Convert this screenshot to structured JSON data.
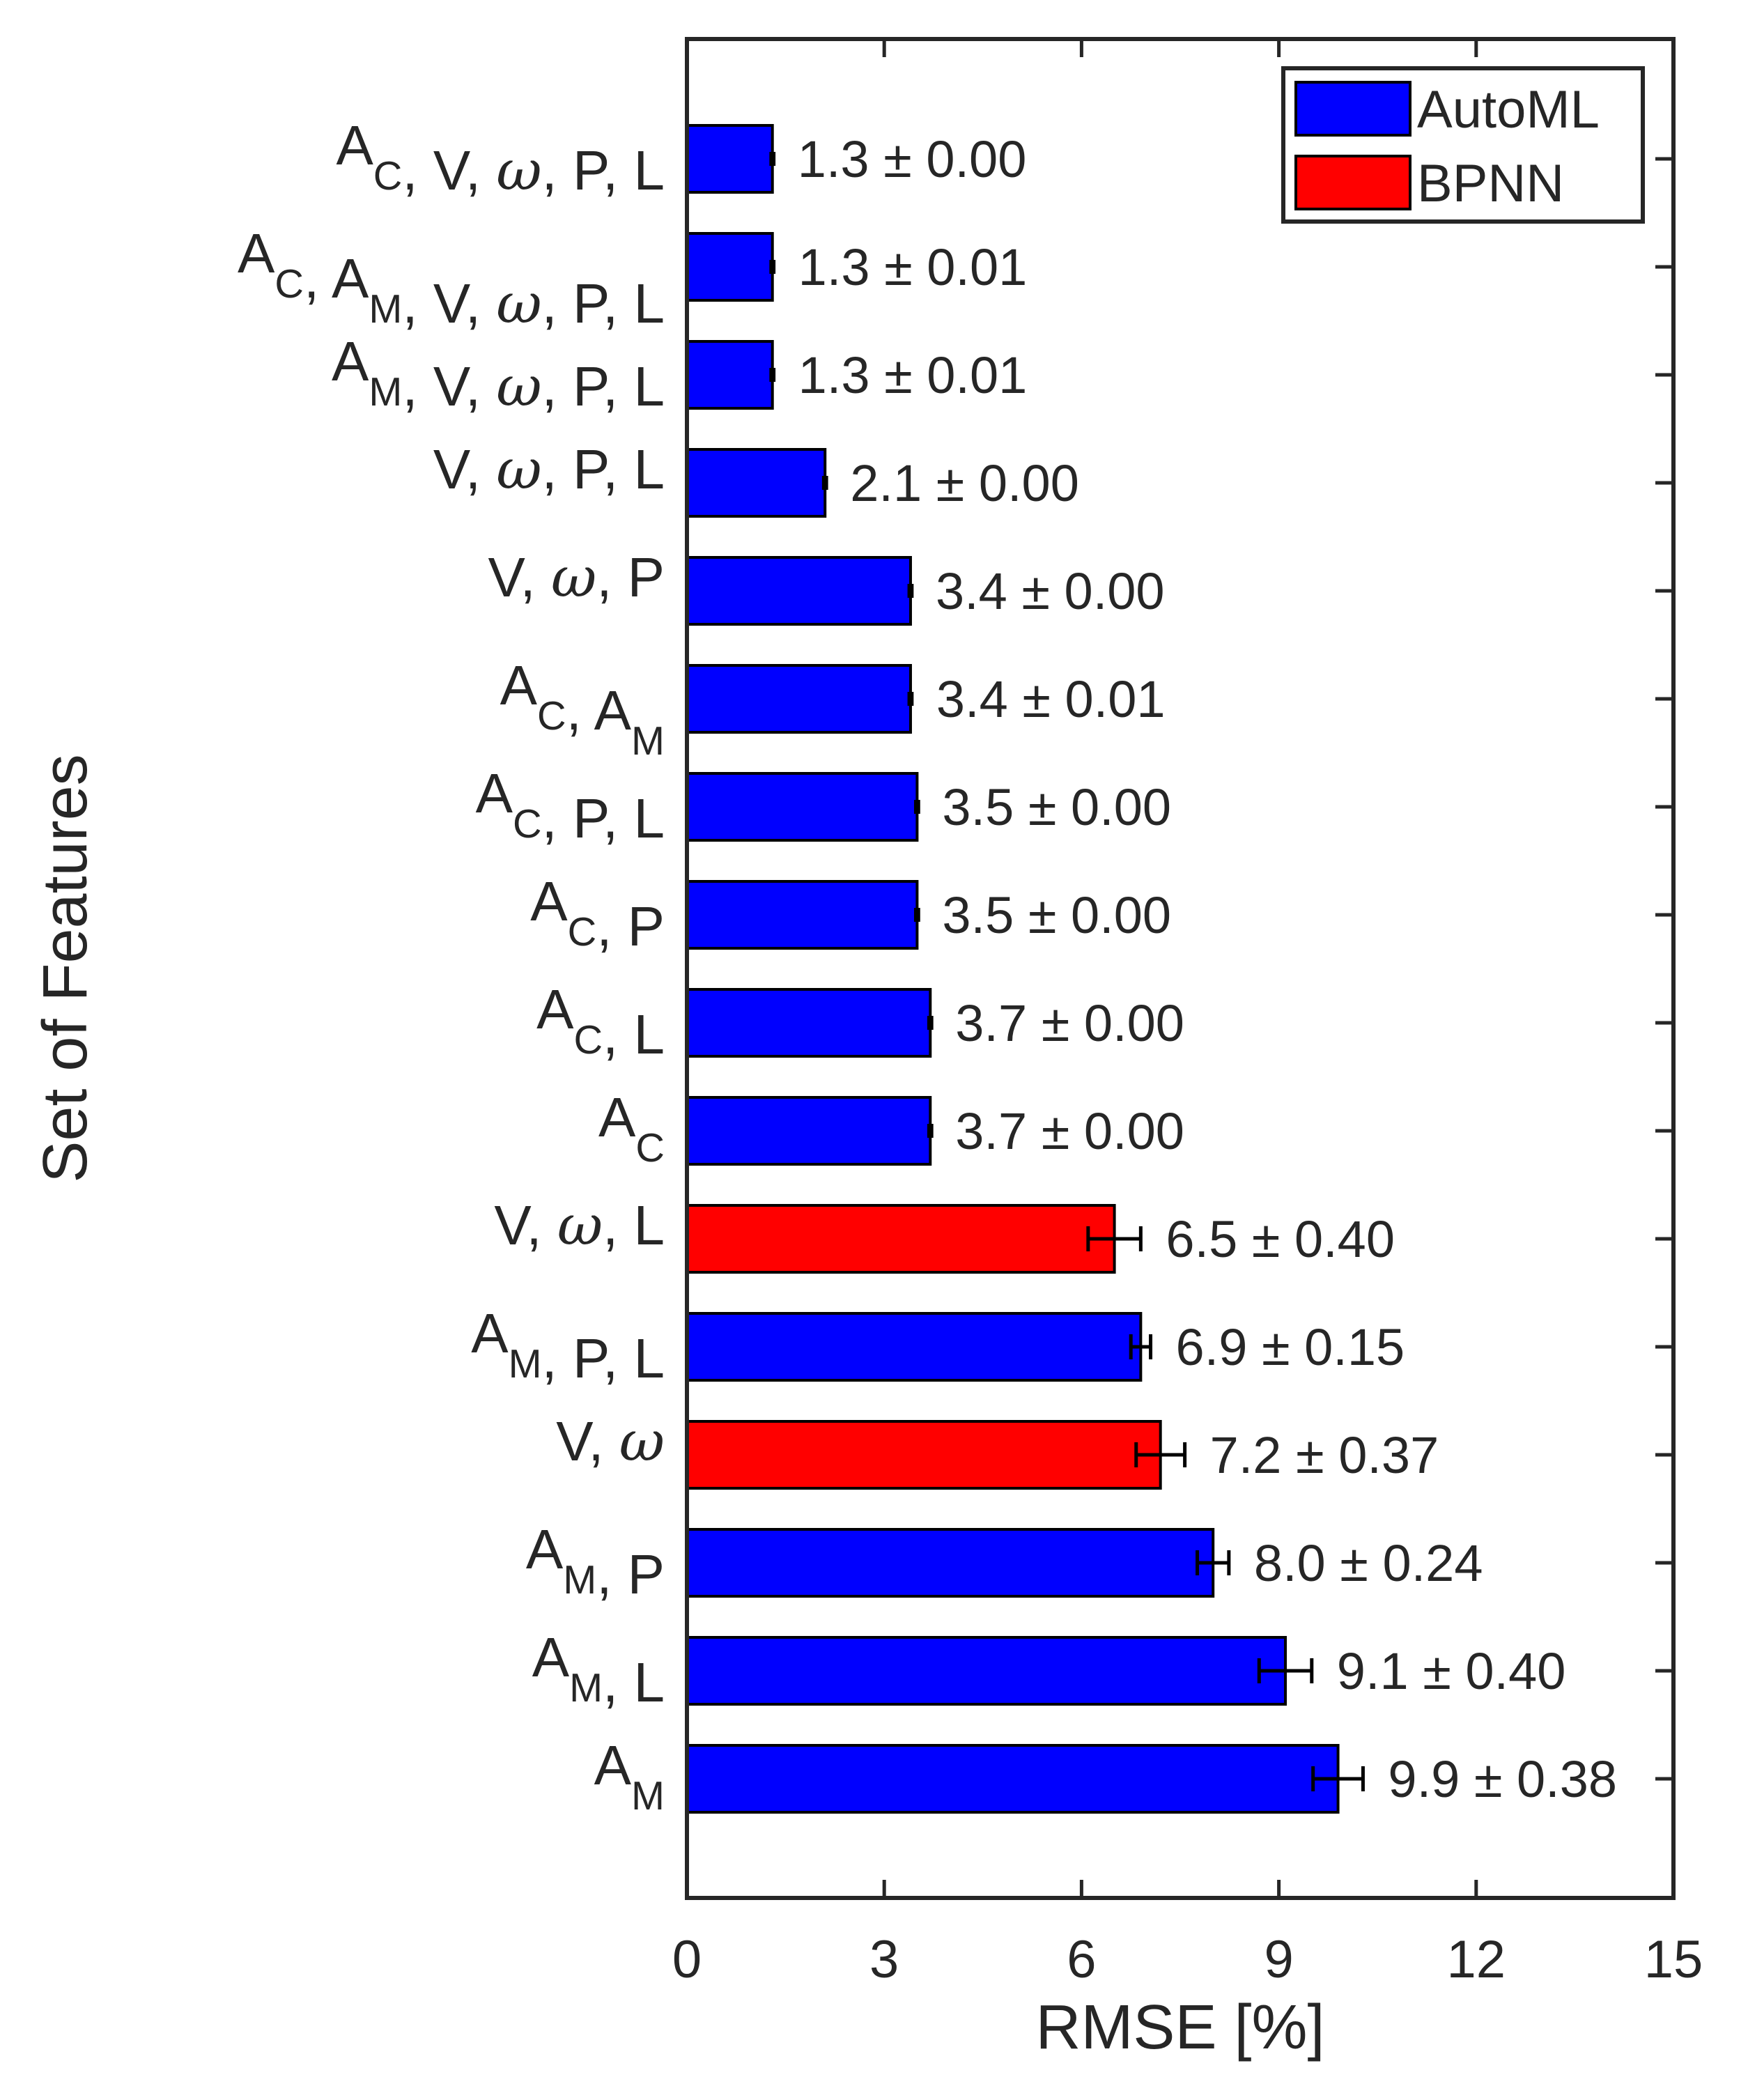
{
  "chart_data": {
    "type": "bar",
    "orientation": "horizontal",
    "xlabel": "RMSE [%]",
    "ylabel": "Set of Features",
    "xlim": [
      0,
      15
    ],
    "xticks": [
      0,
      3,
      6,
      9,
      12,
      15
    ],
    "xtick_labels": [
      "0",
      "3",
      "6",
      "9",
      "12",
      "15"
    ],
    "legend_position": "top-right",
    "legend": [
      {
        "name": "AutoML",
        "color": "#0000ff"
      },
      {
        "name": "BPNN",
        "color": "#ff0000"
      }
    ],
    "categories": [
      "A_C, V, ω, P, L",
      "A_C, A_M, V, ω, P, L",
      "A_M, V, ω, P, L",
      "V, ω, P, L",
      "V, ω, P",
      "A_C, A_M",
      "A_C, P, L",
      "A_C, P",
      "A_C, L",
      "A_C",
      "V, ω, L",
      "A_M, P, L",
      "V, ω",
      "A_M, P",
      "A_M, L",
      "A_M"
    ],
    "values": [
      1.3,
      1.3,
      1.3,
      2.1,
      3.4,
      3.4,
      3.5,
      3.5,
      3.7,
      3.7,
      6.5,
      6.9,
      7.2,
      8.0,
      9.1,
      9.9
    ],
    "errors": [
      0.0,
      0.01,
      0.01,
      0.0,
      0.0,
      0.01,
      0.0,
      0.0,
      0.0,
      0.0,
      0.4,
      0.15,
      0.37,
      0.24,
      0.4,
      0.38
    ],
    "models": [
      "AutoML",
      "AutoML",
      "AutoML",
      "AutoML",
      "AutoML",
      "AutoML",
      "AutoML",
      "AutoML",
      "AutoML",
      "AutoML",
      "BPNN",
      "AutoML",
      "BPNN",
      "AutoML",
      "AutoML",
      "AutoML"
    ],
    "value_labels": [
      "1.3 ± 0.00",
      "1.3 ± 0.01",
      "1.3 ± 0.01",
      "2.1 ± 0.00",
      "3.4 ± 0.00",
      "3.4 ± 0.01",
      "3.5 ± 0.00",
      "3.5 ± 0.00",
      "3.7 ± 0.00",
      "3.7 ± 0.00",
      "6.5 ± 0.40",
      "6.9 ± 0.15",
      "7.2 ± 0.37",
      "8.0 ± 0.24",
      "9.1 ± 0.40",
      "9.9 ± 0.38"
    ]
  }
}
